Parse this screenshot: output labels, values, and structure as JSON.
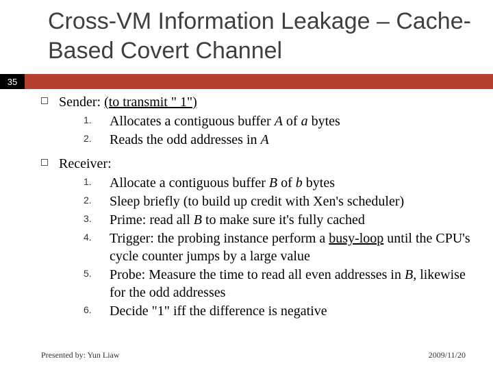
{
  "title": "Cross-VM Information Leakage – Cache-Based Covert Channel",
  "page_number": "35",
  "colors": {
    "accent_bar": "#b5402f",
    "badge_bg": "#000000",
    "badge_fg": "#ffffff",
    "title_color": "#3f3f3f",
    "body_text": "#000000"
  },
  "sender": {
    "heading_prefix": "Sender: ",
    "heading_underlined": "(to transmit \" 1\")",
    "items": [
      {
        "pre": "Allocates a contiguous ",
        "buf": "buffer ",
        "bufvar": "A",
        "mid": " of ",
        "szvar": "a",
        "post": " bytes"
      },
      {
        "pre": "Reads the odd addresses in ",
        "var": "A"
      }
    ]
  },
  "receiver": {
    "heading": "Receiver:",
    "items": [
      {
        "pre": "Allocate a contiguous ",
        "buf": "buffer ",
        "bufvar": "B",
        "mid": " of ",
        "szvar": "b",
        "post": " bytes"
      },
      {
        "text": "Sleep briefly (to build up credit with Xen's scheduler)"
      },
      {
        "pre": "Prime: read all ",
        "var": "B",
        "post": " to make sure it's fully cached"
      },
      {
        "pre": "Trigger: the probing instance perform a ",
        "u": "busy-loop",
        "post": " until the CPU's cycle counter jumps by a large value"
      },
      {
        "pre": "Probe: Measure the time to read all even addresses in ",
        "var": "B",
        "post": ", likewise for the odd addresses"
      },
      {
        "text": "Decide \"1\" iff the difference is negative"
      }
    ]
  },
  "footer": {
    "presenter": "Presented by: Yun Liaw",
    "date": "2009/11/20"
  }
}
